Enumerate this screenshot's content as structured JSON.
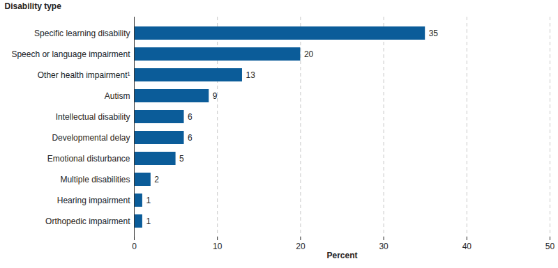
{
  "chart_data": {
    "type": "bar",
    "orientation": "horizontal",
    "ylabel": "Disability type",
    "xlabel": "Percent",
    "categories": [
      "Specific learning disability",
      "Speech or language impairment",
      "Other health impairment¹",
      "Autism",
      "Intellectual disability",
      "Developmental delay",
      "Emotional disturbance",
      "Multiple disabilities",
      "Hearing impairment",
      "Orthopedic impairment"
    ],
    "values": [
      35,
      20,
      13,
      9,
      6,
      6,
      5,
      2,
      1,
      1
    ],
    "color": "#0b5c99",
    "xlim": [
      0,
      50
    ],
    "xticks": [
      0,
      10,
      20,
      30,
      40,
      50
    ],
    "grid": true,
    "data_labels": true
  }
}
